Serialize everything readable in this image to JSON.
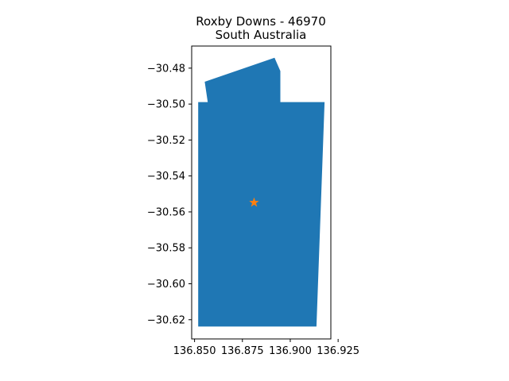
{
  "title": {
    "line1": "Roxby Downs - 46970",
    "line2": "South Australia"
  },
  "map": {
    "polygon_color": "#1f77b4",
    "marker_color": "#ff7f0e",
    "marker_shape": "star",
    "marker_point": {
      "lon": 136.8811,
      "lat": -30.5548
    },
    "boundary": [
      [
        136.8519,
        -30.6238
      ],
      [
        136.8519,
        -30.4989
      ],
      [
        136.8569,
        -30.4989
      ],
      [
        136.8553,
        -30.4876
      ],
      [
        136.8918,
        -30.4742
      ],
      [
        136.8948,
        -30.4816
      ],
      [
        136.8948,
        -30.4989
      ],
      [
        136.9179,
        -30.4989
      ],
      [
        136.9168,
        -30.5324
      ],
      [
        136.9137,
        -30.6238
      ]
    ]
  },
  "chart_data": {
    "type": "map",
    "xlim": [
      136.8485,
      136.9212
    ],
    "ylim": [
      -30.6307,
      -30.4677
    ],
    "x_ticks": [
      136.85,
      136.875,
      136.9,
      136.925
    ],
    "x_tick_labels": [
      "136.850",
      "136.875",
      "136.900",
      "136.925"
    ],
    "y_ticks": [
      -30.48,
      -30.5,
      -30.52,
      -30.54,
      -30.56,
      -30.58,
      -30.6,
      -30.62
    ],
    "y_tick_labels": [
      "−30.48",
      "−30.50",
      "−30.52",
      "−30.54",
      "−30.56",
      "−30.58",
      "−30.60",
      "−30.62"
    ],
    "grid": false
  }
}
